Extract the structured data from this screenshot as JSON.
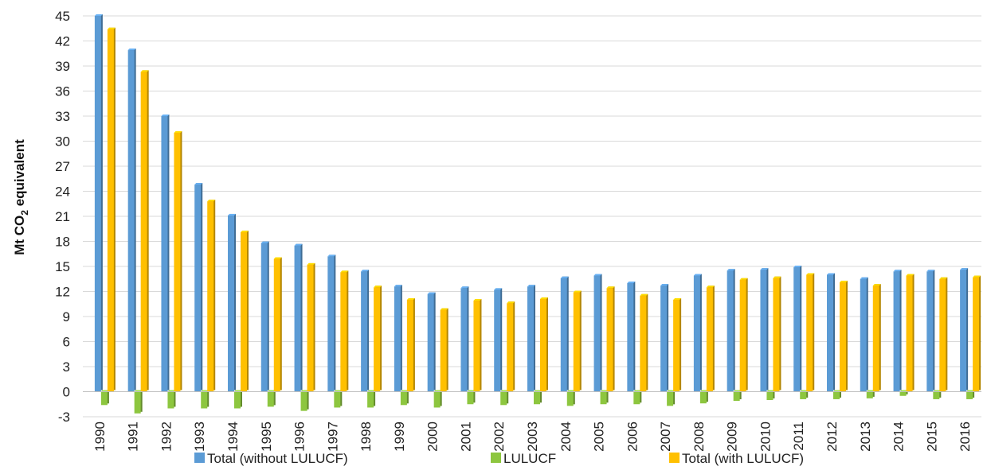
{
  "chart_data": {
    "type": "bar",
    "ylabel": "Mt CO2 equivalent",
    "ylabel_parts": {
      "main": "Mt CO",
      "sub": "2",
      "tail": " equivalent"
    },
    "ylim": [
      -3,
      45
    ],
    "yticks": [
      -3,
      0,
      3,
      6,
      9,
      12,
      15,
      18,
      21,
      24,
      27,
      30,
      33,
      36,
      39,
      42,
      45
    ],
    "grid": true,
    "legend_position": "bottom",
    "categories": [
      "1990",
      "1991",
      "1992",
      "1993",
      "1994",
      "1995",
      "1996",
      "1997",
      "1998",
      "1999",
      "2000",
      "2001",
      "2002",
      "2003",
      "2004",
      "2005",
      "2006",
      "2007",
      "2008",
      "2009",
      "2010",
      "2011",
      "2012",
      "2013",
      "2014",
      "2015",
      "2016"
    ],
    "series": [
      {
        "name": "Total (without LULUCF)",
        "color": "#5b9bd5",
        "values": [
          45.0,
          40.9,
          33.0,
          24.8,
          21.1,
          17.8,
          17.5,
          16.2,
          14.4,
          12.6,
          11.7,
          12.4,
          12.2,
          12.6,
          13.6,
          13.9,
          13.0,
          12.7,
          13.9,
          14.5,
          14.6,
          14.9,
          14.0,
          13.5,
          14.4,
          14.4,
          14.6
        ]
      },
      {
        "name": "LULUCF",
        "color": "#8dc63f",
        "values": [
          -1.6,
          -2.6,
          -2.0,
          -2.0,
          -2.0,
          -1.8,
          -2.3,
          -1.9,
          -1.9,
          -1.6,
          -1.9,
          -1.5,
          -1.6,
          -1.5,
          -1.7,
          -1.5,
          -1.5,
          -1.7,
          -1.4,
          -1.1,
          -1.0,
          -0.9,
          -0.9,
          -0.8,
          -0.5,
          -0.9,
          -0.9
        ]
      },
      {
        "name": "Total (with LULUCF)",
        "color": "#ffc000",
        "values": [
          43.4,
          38.3,
          31.0,
          22.8,
          19.1,
          15.9,
          15.2,
          14.3,
          12.5,
          11.0,
          9.8,
          10.9,
          10.6,
          11.1,
          11.9,
          12.4,
          11.5,
          11.0,
          12.5,
          13.4,
          13.6,
          14.0,
          13.1,
          12.7,
          13.9,
          13.5,
          13.7
        ]
      }
    ]
  }
}
